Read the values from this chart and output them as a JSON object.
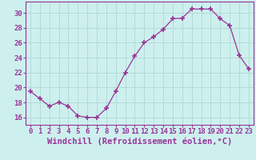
{
  "x": [
    0,
    1,
    2,
    3,
    4,
    5,
    6,
    7,
    8,
    9,
    10,
    11,
    12,
    13,
    14,
    15,
    16,
    17,
    18,
    19,
    20,
    21,
    22,
    23
  ],
  "y": [
    19.5,
    18.5,
    17.5,
    18.0,
    17.5,
    16.2,
    16.0,
    16.0,
    17.2,
    19.5,
    22.0,
    24.2,
    26.0,
    26.8,
    27.8,
    29.2,
    29.3,
    30.5,
    30.5,
    30.5,
    29.2,
    28.3,
    24.3,
    22.5
  ],
  "line_color": "#993399",
  "marker": "+",
  "marker_size": 4,
  "bg_color": "#cdf0ee",
  "grid_color": "#b0d8d4",
  "xlabel": "Windchill (Refroidissement éolien,°C)",
  "xlim": [
    -0.5,
    23.5
  ],
  "ylim": [
    15.0,
    31.5
  ],
  "yticks": [
    16,
    18,
    20,
    22,
    24,
    26,
    28,
    30
  ],
  "xticks": [
    0,
    1,
    2,
    3,
    4,
    5,
    6,
    7,
    8,
    9,
    10,
    11,
    12,
    13,
    14,
    15,
    16,
    17,
    18,
    19,
    20,
    21,
    22,
    23
  ],
  "font_color": "#993399",
  "tick_fontsize": 6.5,
  "xlabel_fontsize": 7.5
}
